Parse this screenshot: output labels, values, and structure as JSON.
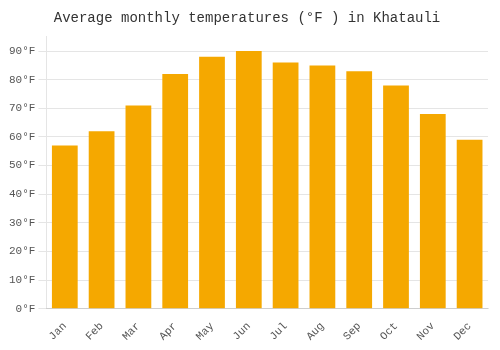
{
  "chart_data": {
    "type": "bar",
    "title": "Average monthly temperatures (°F ) in Khatauli",
    "categories": [
      "Jan",
      "Feb",
      "Mar",
      "Apr",
      "May",
      "Jun",
      "Jul",
      "Aug",
      "Sep",
      "Oct",
      "Nov",
      "Dec"
    ],
    "values": [
      57,
      62,
      71,
      82,
      88,
      90,
      86,
      85,
      83,
      78,
      68,
      59
    ],
    "color": "#F5A800",
    "ylim": [
      0,
      95
    ],
    "yticks": [
      {
        "value": 0,
        "label": "0°F"
      },
      {
        "value": 10,
        "label": "10°F"
      },
      {
        "value": 20,
        "label": "20°F"
      },
      {
        "value": 30,
        "label": "30°F"
      },
      {
        "value": 40,
        "label": "40°F"
      },
      {
        "value": 50,
        "label": "50°F"
      },
      {
        "value": 60,
        "label": "60°F"
      },
      {
        "value": 70,
        "label": "70°F"
      },
      {
        "value": 80,
        "label": "80°F"
      },
      {
        "value": 90,
        "label": "90°F"
      }
    ],
    "grid": true
  }
}
